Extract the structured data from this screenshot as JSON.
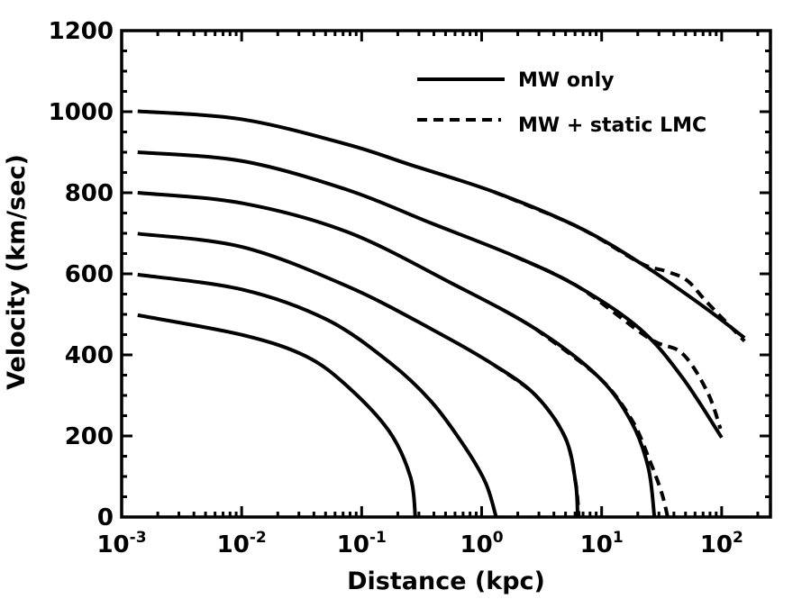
{
  "chart_data": {
    "type": "line",
    "title": "",
    "xlabel": "Distance (kpc)",
    "ylabel": "Velocity (km/sec)",
    "xscale": "log",
    "xlim": [
      0.001,
      255
    ],
    "ylim": [
      0,
      1200
    ],
    "grid": false,
    "legend_position": "top-right",
    "legend": [
      {
        "label": "MW only",
        "style": "solid"
      },
      {
        "label": "MW + static LMC",
        "style": "dashed"
      }
    ],
    "yticks": [
      "0",
      "200",
      "400",
      "600",
      "800",
      "1000",
      "1200"
    ],
    "ytick_values": [
      0,
      200,
      400,
      600,
      800,
      1000,
      1200
    ],
    "xticks": [
      {
        "base": "10",
        "exp": "-3",
        "value": 0.001
      },
      {
        "base": "10",
        "exp": "-2",
        "value": 0.01
      },
      {
        "base": "10",
        "exp": "-1",
        "value": 0.1
      },
      {
        "base": "10",
        "exp": "0",
        "value": 1
      },
      {
        "base": "10",
        "exp": "1",
        "value": 10
      },
      {
        "base": "10",
        "exp": "2",
        "value": 100
      }
    ],
    "series": [
      {
        "name": "MW only v0=1000",
        "style": "solid",
        "points": [
          [
            0.00136,
            1001
          ],
          [
            0.0102,
            981
          ],
          [
            0.0764,
            919
          ],
          [
            0.255,
            869
          ],
          [
            1.27,
            802
          ],
          [
            6.31,
            716
          ],
          [
            20.9,
            627
          ],
          [
            70.8,
            519
          ],
          [
            155,
            442
          ]
        ]
      },
      {
        "name": "MW only v0=900",
        "style": "solid",
        "points": [
          [
            0.00136,
            900
          ],
          [
            0.0102,
            878
          ],
          [
            0.0764,
            807
          ],
          [
            0.38,
            725
          ],
          [
            1.9,
            643
          ],
          [
            6.31,
            569
          ],
          [
            20.9,
            464
          ],
          [
            46.8,
            345
          ],
          [
            100,
            196
          ]
        ]
      },
      {
        "name": "MW only v0=800",
        "style": "solid",
        "points": [
          [
            0.00136,
            800
          ],
          [
            0.0102,
            774
          ],
          [
            0.0764,
            703
          ],
          [
            0.568,
            576
          ],
          [
            2.82,
            464
          ],
          [
            9.46,
            345
          ],
          [
            17.8,
            233
          ],
          [
            24.5,
            121
          ],
          [
            27.5,
            0
          ]
        ]
      },
      {
        "name": "MW only v0=700",
        "style": "solid",
        "points": [
          [
            0.00136,
            699
          ],
          [
            0.0102,
            666
          ],
          [
            0.0764,
            569
          ],
          [
            0.38,
            464
          ],
          [
            1.27,
            375
          ],
          [
            2.82,
            300
          ],
          [
            4.97,
            196
          ],
          [
            6.07,
            84
          ],
          [
            6.31,
            0
          ]
        ]
      },
      {
        "name": "MW only v0=600",
        "style": "solid",
        "points": [
          [
            0.00136,
            598
          ],
          [
            0.0102,
            561
          ],
          [
            0.0513,
            487
          ],
          [
            0.17,
            382
          ],
          [
            0.38,
            285
          ],
          [
            0.724,
            173
          ],
          [
            1.08,
            84
          ],
          [
            1.32,
            0
          ]
        ]
      },
      {
        "name": "MW only v0=500",
        "style": "solid",
        "points": [
          [
            0.00136,
            498
          ],
          [
            0.0102,
            449
          ],
          [
            0.0341,
            397
          ],
          [
            0.0764,
            322
          ],
          [
            0.17,
            211
          ],
          [
            0.255,
            99
          ],
          [
            0.28,
            0
          ]
        ]
      },
      {
        "name": "MW + static LMC v0=1000",
        "style": "dashed",
        "points": [
          [
            1.27,
            802
          ],
          [
            6.31,
            716
          ],
          [
            20.9,
            627
          ],
          [
            33.9,
            607
          ],
          [
            51.3,
            584
          ],
          [
            75.9,
            529
          ],
          [
            155,
            434
          ]
        ]
      },
      {
        "name": "MW + static LMC v0=900",
        "style": "dashed",
        "points": [
          [
            1.9,
            643
          ],
          [
            6.31,
            569
          ],
          [
            24.5,
            442
          ],
          [
            46.8,
            404
          ],
          [
            75.9,
            309
          ],
          [
            97.7,
            218
          ]
        ]
      },
      {
        "name": "MW + static LMC v0=800",
        "style": "dashed",
        "points": [
          [
            2.82,
            464
          ],
          [
            9.46,
            345
          ],
          [
            17.8,
            240
          ],
          [
            25.1,
            140
          ],
          [
            31.6,
            60
          ],
          [
            35.5,
            0
          ]
        ]
      },
      {
        "name": "MW + static LMC v0=700",
        "style": "dashed",
        "points": [
          [
            1.27,
            375
          ],
          [
            2.82,
            300
          ],
          [
            4.97,
            196
          ],
          [
            6.07,
            84
          ],
          [
            6.46,
            0
          ]
        ]
      }
    ]
  }
}
